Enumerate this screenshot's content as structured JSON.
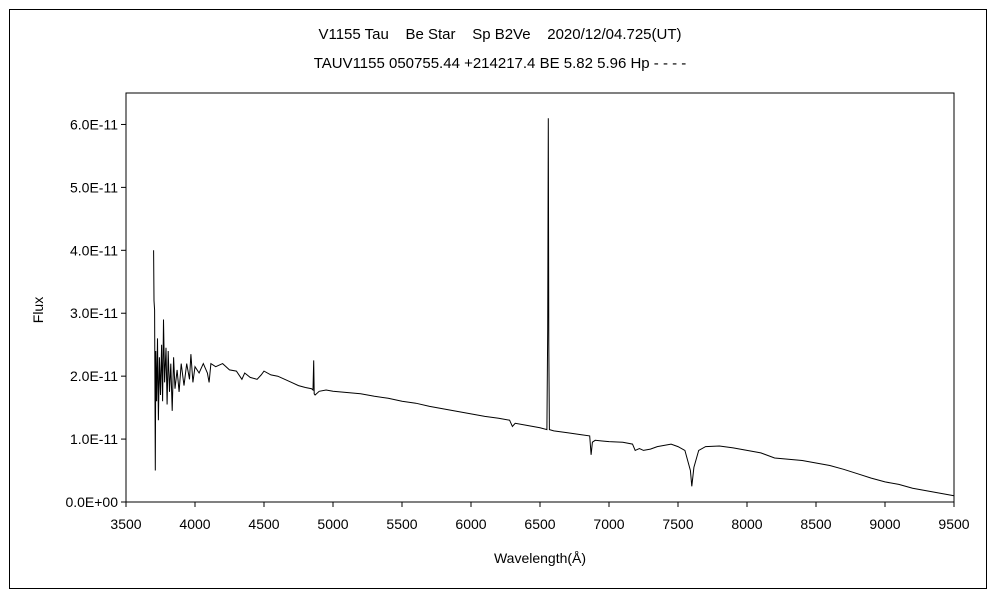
{
  "chart_data": {
    "type": "line",
    "title": "V1155 Tau    Be Star    Sp B2Ve    2020/12/04.725(UT)",
    "subtitle": "TAUV1155 050755.44 +214217.4 BE 5.82 5.96 Hp - - - -",
    "xlabel": "Wavelength(Å)",
    "ylabel": "Flux",
    "xlim": [
      3500,
      9500
    ],
    "ylim": [
      0,
      6.5e-11
    ],
    "x_ticks": [
      3500,
      4000,
      4500,
      5000,
      5500,
      6000,
      6500,
      7000,
      7500,
      8000,
      8500,
      9000,
      9500
    ],
    "x_tick_labels": [
      "3500",
      "4000",
      "4500",
      "5000",
      "5500",
      "6000",
      "6500",
      "7000",
      "7500",
      "8000",
      "8500",
      "9000",
      "9500"
    ],
    "y_ticks": [
      0,
      1e-11,
      2e-11,
      3e-11,
      4e-11,
      5e-11,
      6e-11
    ],
    "y_tick_labels": [
      "0.0E+00",
      "1.0E-11",
      "2.0E-11",
      "3.0E-11",
      "4.0E-11",
      "5.0E-11",
      "6.0E-11"
    ],
    "grid": false,
    "series": [
      {
        "points": [
          [
            3700,
            4e-11
          ],
          [
            3703,
            3.2e-11
          ],
          [
            3707,
            3.05e-11
          ],
          [
            3712,
            5e-12
          ],
          [
            3716,
            2.4e-11
          ],
          [
            3722,
            1.6e-11
          ],
          [
            3728,
            2.6e-11
          ],
          [
            3735,
            1.3e-11
          ],
          [
            3742,
            2.3e-11
          ],
          [
            3750,
            1.7e-11
          ],
          [
            3758,
            2.5e-11
          ],
          [
            3765,
            1.6e-11
          ],
          [
            3772,
            2.9e-11
          ],
          [
            3780,
            1.9e-11
          ],
          [
            3790,
            2.45e-11
          ],
          [
            3798,
            1.55e-11
          ],
          [
            3806,
            2.4e-11
          ],
          [
            3815,
            1.75e-11
          ],
          [
            3825,
            2.2e-11
          ],
          [
            3835,
            1.45e-11
          ],
          [
            3845,
            2.3e-11
          ],
          [
            3855,
            1.8e-11
          ],
          [
            3870,
            2.1e-11
          ],
          [
            3885,
            1.75e-11
          ],
          [
            3900,
            2.2e-11
          ],
          [
            3920,
            1.85e-11
          ],
          [
            3940,
            2.2e-11
          ],
          [
            3960,
            1.95e-11
          ],
          [
            3970,
            2.35e-11
          ],
          [
            3985,
            1.9e-11
          ],
          [
            4000,
            2.15e-11
          ],
          [
            4030,
            2.05e-11
          ],
          [
            4060,
            2.2e-11
          ],
          [
            4090,
            2.05e-11
          ],
          [
            4102,
            1.9e-11
          ],
          [
            4115,
            2.2e-11
          ],
          [
            4150,
            2.15e-11
          ],
          [
            4200,
            2.2e-11
          ],
          [
            4250,
            2.1e-11
          ],
          [
            4300,
            2.08e-11
          ],
          [
            4340,
            1.95e-11
          ],
          [
            4360,
            2.05e-11
          ],
          [
            4400,
            1.98e-11
          ],
          [
            4450,
            1.95e-11
          ],
          [
            4480,
            2.02e-11
          ],
          [
            4500,
            2.08e-11
          ],
          [
            4550,
            2.02e-11
          ],
          [
            4600,
            2e-11
          ],
          [
            4650,
            1.95e-11
          ],
          [
            4700,
            1.9e-11
          ],
          [
            4750,
            1.85e-11
          ],
          [
            4800,
            1.82e-11
          ],
          [
            4845,
            1.8e-11
          ],
          [
            4855,
            1.78e-11
          ],
          [
            4860,
            2.25e-11
          ],
          [
            4864,
            1.72e-11
          ],
          [
            4870,
            1.7e-11
          ],
          [
            4900,
            1.76e-11
          ],
          [
            4950,
            1.78e-11
          ],
          [
            5000,
            1.76e-11
          ],
          [
            5100,
            1.74e-11
          ],
          [
            5200,
            1.72e-11
          ],
          [
            5300,
            1.68e-11
          ],
          [
            5400,
            1.65e-11
          ],
          [
            5500,
            1.6e-11
          ],
          [
            5600,
            1.57e-11
          ],
          [
            5700,
            1.52e-11
          ],
          [
            5800,
            1.48e-11
          ],
          [
            5900,
            1.44e-11
          ],
          [
            6000,
            1.4e-11
          ],
          [
            6100,
            1.36e-11
          ],
          [
            6200,
            1.33e-11
          ],
          [
            6280,
            1.3e-11
          ],
          [
            6300,
            1.2e-11
          ],
          [
            6320,
            1.25e-11
          ],
          [
            6400,
            1.22e-11
          ],
          [
            6500,
            1.18e-11
          ],
          [
            6550,
            1.15e-11
          ],
          [
            6556,
            2.75e-11
          ],
          [
            6560,
            6.1e-11
          ],
          [
            6564,
            2.5e-11
          ],
          [
            6568,
            1.15e-11
          ],
          [
            6600,
            1.13e-11
          ],
          [
            6700,
            1.1e-11
          ],
          [
            6800,
            1.07e-11
          ],
          [
            6860,
            1.05e-11
          ],
          [
            6870,
            7.5e-12
          ],
          [
            6880,
            9.5e-12
          ],
          [
            6900,
            9.8e-12
          ],
          [
            6950,
            9.7e-12
          ],
          [
            7000,
            9.6e-12
          ],
          [
            7100,
            9.5e-12
          ],
          [
            7170,
            9.2e-12
          ],
          [
            7190,
            8.2e-12
          ],
          [
            7220,
            8.5e-12
          ],
          [
            7250,
            8.2e-12
          ],
          [
            7300,
            8.4e-12
          ],
          [
            7350,
            8.8e-12
          ],
          [
            7400,
            9e-12
          ],
          [
            7450,
            9.2e-12
          ],
          [
            7500,
            8.8e-12
          ],
          [
            7550,
            8.2e-12
          ],
          [
            7590,
            5e-12
          ],
          [
            7600,
            2.5e-12
          ],
          [
            7615,
            5.5e-12
          ],
          [
            7650,
            8.2e-12
          ],
          [
            7700,
            8.8e-12
          ],
          [
            7800,
            8.9e-12
          ],
          [
            7900,
            8.6e-12
          ],
          [
            8000,
            8.2e-12
          ],
          [
            8100,
            7.8e-12
          ],
          [
            8200,
            7e-12
          ],
          [
            8300,
            6.8e-12
          ],
          [
            8400,
            6.6e-12
          ],
          [
            8500,
            6.2e-12
          ],
          [
            8600,
            5.8e-12
          ],
          [
            8700,
            5.2e-12
          ],
          [
            8800,
            4.5e-12
          ],
          [
            8900,
            3.8e-12
          ],
          [
            9000,
            3.2e-12
          ],
          [
            9100,
            2.8e-12
          ],
          [
            9200,
            2.2e-12
          ],
          [
            9300,
            1.8e-12
          ],
          [
            9400,
            1.4e-12
          ],
          [
            9500,
            1e-12
          ]
        ]
      }
    ]
  }
}
